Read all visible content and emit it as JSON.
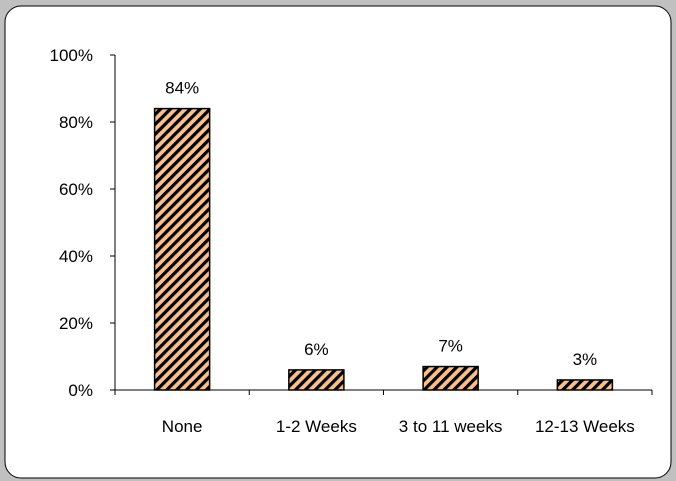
{
  "chart_data": {
    "type": "bar",
    "categories": [
      "None",
      "1-2 Weeks",
      "3 to 11 weeks",
      "12-13 Weeks"
    ],
    "values": [
      84,
      6,
      7,
      3
    ],
    "data_labels": [
      "84%",
      "6%",
      "7%",
      "3%"
    ],
    "ylim": [
      0,
      100
    ],
    "yticks": [
      0,
      20,
      40,
      60,
      80,
      100
    ],
    "ytick_labels": [
      "0%",
      "20%",
      "40%",
      "60%",
      "80%",
      "100%"
    ],
    "grid": false,
    "legend": "none",
    "bar_fill_color": "#f9c08e",
    "bar_hatch_color": "#000000",
    "background_color": "#ffffff",
    "frame_color": "#c0c0c0"
  }
}
